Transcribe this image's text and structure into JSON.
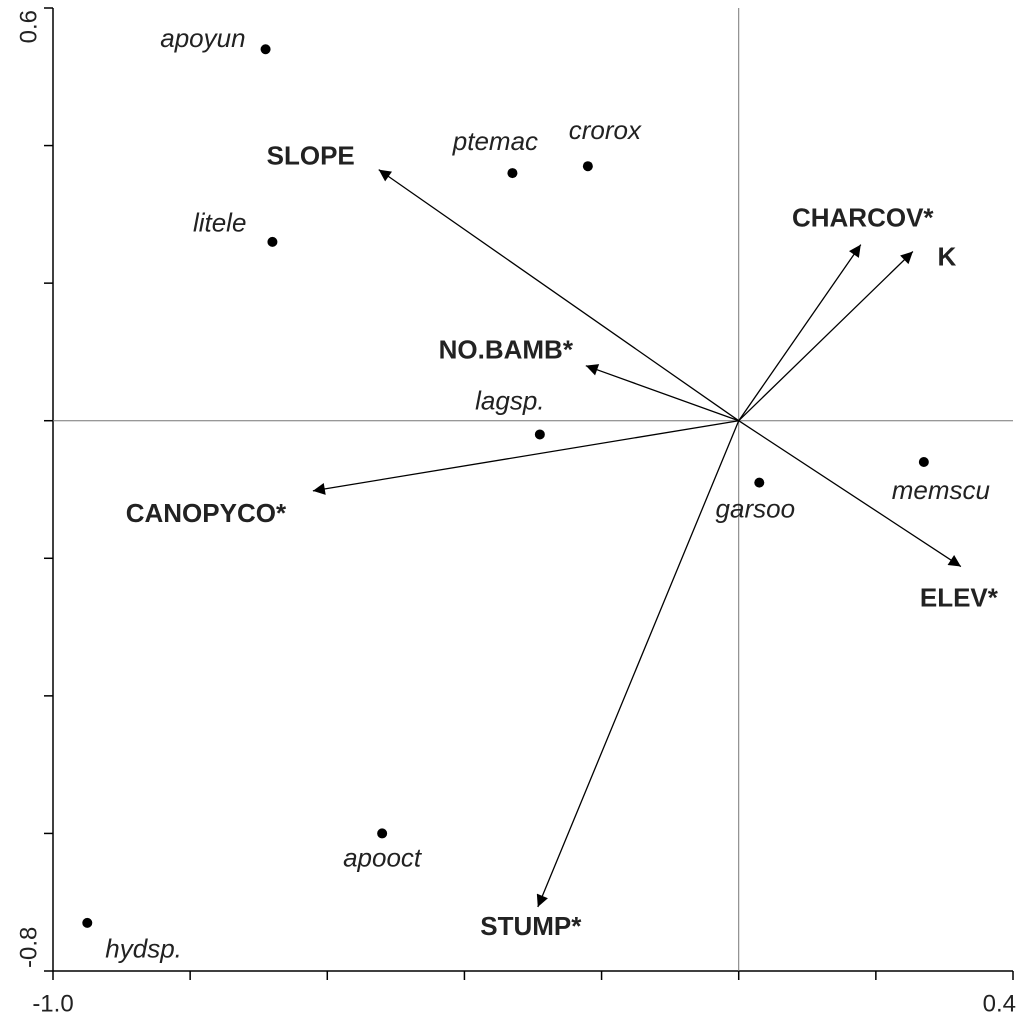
{
  "chart_data": {
    "type": "biplot",
    "xlim": [
      -1.0,
      0.4
    ],
    "ylim": [
      -0.8,
      0.6
    ],
    "xticks": [
      {
        "value": -1.0,
        "label": "-1.0"
      },
      {
        "value": -0.8,
        "label": null
      },
      {
        "value": -0.6,
        "label": null
      },
      {
        "value": -0.4,
        "label": null
      },
      {
        "value": -0.2,
        "label": null
      },
      {
        "value": 0,
        "label": null
      },
      {
        "value": 0.2,
        "label": null
      },
      {
        "value": 0.4,
        "label": "0.4"
      }
    ],
    "yticks": [
      {
        "value": -0.8,
        "label": "-0.8"
      },
      {
        "value": -0.6,
        "label": null
      },
      {
        "value": -0.4,
        "label": null
      },
      {
        "value": -0.2,
        "label": null
      },
      {
        "value": 0,
        "label": null
      },
      {
        "value": 0.2,
        "label": null
      },
      {
        "value": 0.4,
        "label": null
      },
      {
        "value": 0.6,
        "label": "0.6"
      }
    ],
    "color": "#000000",
    "points": {
      "names": [
        "apoyun",
        "ptemac",
        "crorox",
        "litele",
        "lagsp.",
        "garsoo",
        "memscu",
        "apooct",
        "hydsp."
      ],
      "x": [
        -0.69,
        -0.33,
        -0.22,
        -0.68,
        -0.29,
        0.03,
        0.27,
        -0.52,
        -0.95
      ],
      "y": [
        0.54,
        0.36,
        0.37,
        0.26,
        -0.02,
        -0.09,
        -0.06,
        -0.6,
        -0.73
      ]
    },
    "vectors": {
      "names": [
        "SLOPE",
        "NO.BAMB*",
        "CANOPYCO*",
        "STUMP*",
        "ELEV*",
        "CHARCOV*",
        "K"
      ],
      "x": [
        -0.525,
        -0.223,
        -0.621,
        -0.293,
        0.324,
        0.178,
        0.254
      ],
      "y": [
        0.365,
        0.08,
        -0.102,
        -0.707,
        -0.212,
        0.256,
        0.246
      ]
    }
  }
}
